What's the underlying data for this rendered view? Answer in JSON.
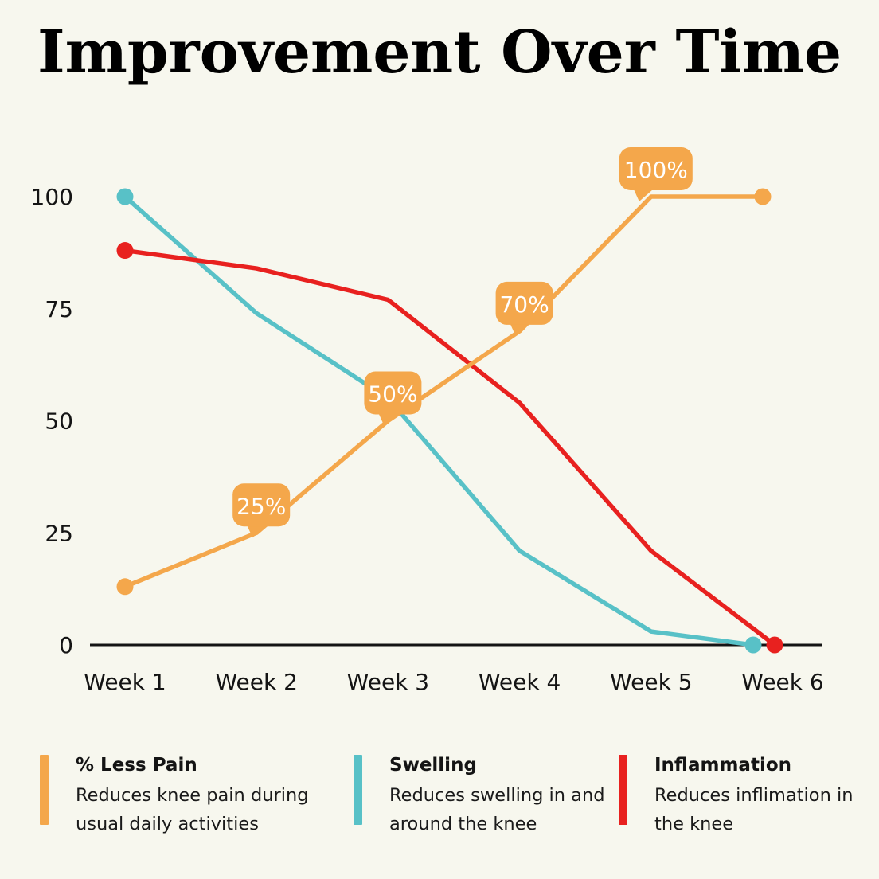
{
  "page": {
    "background": "#F7F7EE",
    "text_color": "#141414"
  },
  "chart_data": {
    "type": "line",
    "title": "Improvement Over Time",
    "xlabel": "",
    "ylabel": "",
    "categories": [
      "Week 1",
      "Week 2",
      "Week 3",
      "Week 4",
      "Week 5",
      "Week 6"
    ],
    "yticks": [
      0,
      25,
      50,
      75,
      100
    ],
    "ylim": [
      0,
      100
    ],
    "grid": false,
    "legend_position": "bottom",
    "axis_color": "#141414",
    "series": [
      {
        "name": "% Less Pain",
        "color": "#F4A74B",
        "values": [
          13,
          25,
          50,
          70,
          100,
          100
        ],
        "point_labels": [
          "",
          "25%",
          "50%",
          "70%",
          "100%",
          ""
        ],
        "label_bg": "#F4A74B",
        "label_text_color": "#FFFFFF",
        "marker_indices": [
          0,
          5
        ]
      },
      {
        "name": "Swelling",
        "color": "#58C1C7",
        "values": [
          100,
          74,
          55,
          21,
          3,
          0
        ],
        "point_labels": [
          "",
          "",
          "",
          "",
          "",
          ""
        ],
        "marker_indices": [
          0,
          5
        ]
      },
      {
        "name": "Inflammation",
        "color": "#E8211F",
        "values": [
          88,
          84,
          77,
          54,
          21,
          0
        ],
        "point_labels": [
          "",
          "",
          "",
          "",
          "",
          ""
        ],
        "marker_indices": [
          0,
          5
        ]
      }
    ]
  },
  "legend": {
    "items": [
      {
        "title": "% Less Pain",
        "desc": "Reduces knee pain during usual daily activities",
        "color": "#F4A74B"
      },
      {
        "title": "Swelling",
        "desc": "Reduces swelling in and around the knee",
        "color": "#58C1C7"
      },
      {
        "title": "Inflammation",
        "desc": "Reduces inflimation in the knee",
        "color": "#E8211F"
      }
    ]
  }
}
